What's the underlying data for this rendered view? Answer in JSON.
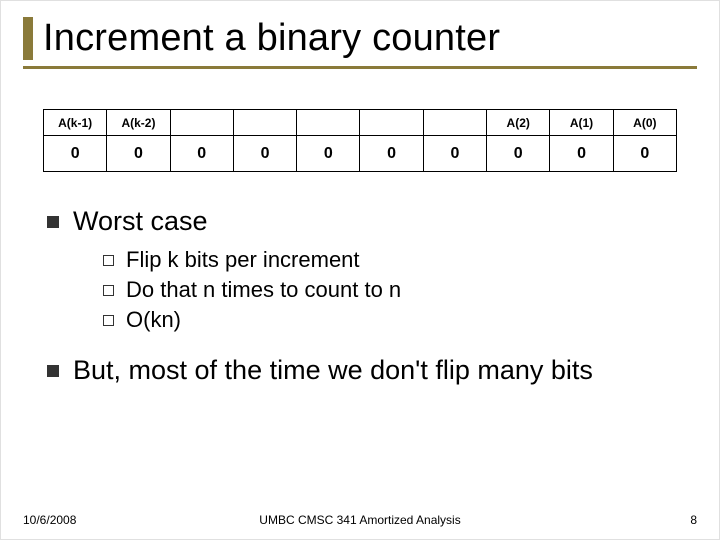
{
  "title": "Increment a binary counter",
  "table": {
    "headers": [
      "A(k-1)",
      "A(k-2)",
      "",
      "",
      "",
      "",
      "",
      "A(2)",
      "A(1)",
      "A(0)"
    ],
    "rows": [
      [
        "0",
        "0",
        "0",
        "0",
        "0",
        "0",
        "0",
        "0",
        "0",
        "0"
      ]
    ],
    "border_color": "#000000",
    "header_fontsize": 12,
    "cell_fontsize": 16
  },
  "bullets": [
    {
      "text": "Worst case",
      "sub": [
        "Flip k bits per increment",
        "Do that n times to count to n",
        "O(kn)"
      ]
    },
    {
      "text": "But, most of the time we don't flip many bits",
      "sub": []
    }
  ],
  "footer": {
    "date": "10/6/2008",
    "center": "UMBC CMSC 341 Amortized Analysis",
    "page": "8"
  },
  "colors": {
    "accent": "#8a7a3a",
    "text": "#000000",
    "background": "#ffffff"
  }
}
